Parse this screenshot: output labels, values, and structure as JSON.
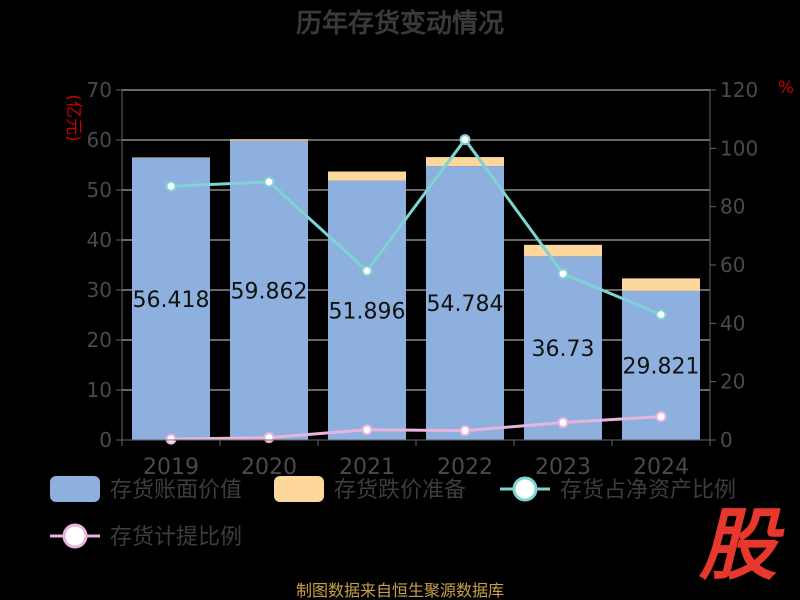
{
  "title": "历年存货变动情况",
  "left_unit": "(亿元)",
  "right_unit": "%",
  "source": "制图数据来自恒生聚源数据库",
  "brand_char": "股",
  "colors": {
    "book_value": "#8EB0DE",
    "reserve": "#FDD79B",
    "net_asset_ratio": "#7ED3D3",
    "provision_ratio": "#E8B4DD"
  },
  "chart_data": {
    "type": "bar",
    "title": "历年存货变动情况",
    "categories": [
      "2019",
      "2020",
      "2021",
      "2022",
      "2023",
      "2024"
    ],
    "left_axis": {
      "label": "(亿元)",
      "range": [
        0,
        70
      ],
      "ticks": [
        0,
        10,
        20,
        30,
        40,
        50,
        60,
        70
      ]
    },
    "right_axis": {
      "label": "%",
      "range": [
        0,
        120
      ],
      "ticks": [
        0,
        20,
        40,
        60,
        80,
        100,
        120
      ]
    },
    "grid": true,
    "legend_position": "bottom",
    "series": [
      {
        "name": "存货账面价值",
        "type": "bar",
        "stack": "inventory",
        "axis": "left",
        "values": [
          56.418,
          59.862,
          51.896,
          54.784,
          36.73,
          29.821
        ],
        "labels": [
          "56.418",
          "59.862",
          "51.896",
          "54.784",
          "36.73",
          "29.821"
        ]
      },
      {
        "name": "存货跌价准备",
        "type": "bar",
        "stack": "inventory",
        "axis": "left",
        "values": [
          0.1,
          0.3,
          1.8,
          1.8,
          2.3,
          2.5
        ]
      },
      {
        "name": "存货占净资产比例",
        "type": "line",
        "axis": "right",
        "values": [
          87,
          88.5,
          58,
          103,
          57,
          43
        ]
      },
      {
        "name": "存货计提比例",
        "type": "line",
        "axis": "right",
        "values": [
          0.3,
          0.8,
          3.5,
          3.2,
          6,
          8
        ]
      }
    ]
  }
}
